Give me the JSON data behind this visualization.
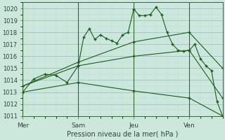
{
  "xlabel": "Pression niveau de la mer( hPa )",
  "background_color": "#cce8dd",
  "grid_major_color": "#99bbbb",
  "grid_minor_color": "#bbdddd",
  "line_color": "#1a5c1a",
  "vline_color": "#336633",
  "ylim": [
    1011,
    1020.5
  ],
  "yticks": [
    1011,
    1012,
    1013,
    1014,
    1015,
    1016,
    1017,
    1018,
    1019,
    1020
  ],
  "x_tick_labels": [
    "Mer",
    "Sam",
    "Jeu",
    "Ven"
  ],
  "x_tick_positions": [
    0,
    30,
    60,
    90
  ],
  "x_vlines": [
    0,
    30,
    60,
    90
  ],
  "xlim": [
    0,
    108
  ],
  "series": [
    {
      "x": [
        0,
        6,
        12,
        18,
        24,
        30,
        33,
        36,
        39,
        42,
        45,
        48,
        51,
        54,
        57,
        60,
        63,
        66,
        69,
        72,
        75,
        78,
        81,
        84,
        87,
        90,
        93,
        96,
        99,
        102,
        105,
        108
      ],
      "y": [
        1013.0,
        1014.1,
        1014.5,
        1014.4,
        1013.8,
        1015.2,
        1017.6,
        1018.3,
        1017.4,
        1017.8,
        1017.5,
        1017.3,
        1017.1,
        1017.8,
        1018.0,
        1019.95,
        1019.4,
        1019.4,
        1019.5,
        1020.1,
        1019.5,
        1018.0,
        1017.0,
        1016.5,
        1016.4,
        1016.5,
        1017.0,
        1015.8,
        1015.2,
        1014.8,
        1012.2,
        1011.0
      ]
    },
    {
      "x": [
        0,
        30,
        60,
        90,
        108
      ],
      "y": [
        1013.5,
        1015.5,
        1017.2,
        1018.0,
        1015.0
      ]
    },
    {
      "x": [
        0,
        30,
        60,
        90,
        108
      ],
      "y": [
        1013.5,
        1015.2,
        1016.0,
        1016.5,
        1012.5
      ]
    },
    {
      "x": [
        0,
        30,
        60,
        90,
        108
      ],
      "y": [
        1013.0,
        1013.8,
        1013.1,
        1012.5,
        1011.0
      ]
    }
  ]
}
